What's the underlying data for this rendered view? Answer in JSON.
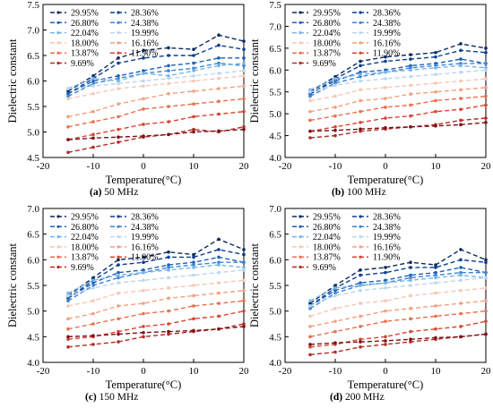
{
  "figure": {
    "captions": [
      {
        "letter": "(a)",
        "text": "50 MHz"
      },
      {
        "letter": "(b)",
        "text": "100 MHz"
      },
      {
        "letter": "(c)",
        "text": "150 MHz"
      },
      {
        "letter": "(d)",
        "text": "200 MHz"
      }
    ]
  },
  "colors": [
    "#0b2a5e",
    "#0d3f8f",
    "#1f5fb8",
    "#3b86d6",
    "#78b6ea",
    "#bcd6ec",
    "#f4c8b6",
    "#f2a080",
    "#e8704e",
    "#d8452f",
    "#b52a24",
    "#7a1118"
  ],
  "legend_order": [
    0,
    1,
    2,
    3,
    4,
    5,
    6,
    7,
    8,
    9,
    10,
    11
  ],
  "chart_data": [
    {
      "type": "line",
      "title": "",
      "xlabel": "Temperature(°C)",
      "ylabel": "Dielectric constant",
      "xlim": [
        -20,
        20
      ],
      "ylim": [
        4.5,
        7.5
      ],
      "xticks": [
        -20,
        -10,
        0,
        10,
        20
      ],
      "yticks": [
        4.5,
        5.0,
        5.5,
        6.0,
        6.5,
        7.0,
        7.5
      ],
      "x": [
        -15,
        -10,
        -5,
        0,
        5,
        10,
        15,
        20
      ],
      "series": [
        {
          "name": "29.95%",
          "values": [
            5.8,
            6.1,
            6.45,
            6.6,
            6.65,
            6.62,
            6.9,
            6.78
          ]
        },
        {
          "name": "28.36%",
          "values": [
            5.75,
            6.05,
            6.35,
            6.45,
            6.5,
            6.5,
            6.7,
            6.62
          ]
        },
        {
          "name": "26.80%",
          "values": [
            5.75,
            6.0,
            6.1,
            6.2,
            6.3,
            6.35,
            6.45,
            6.45
          ]
        },
        {
          "name": "24.38%",
          "values": [
            5.7,
            5.95,
            6.05,
            6.15,
            6.2,
            6.25,
            6.35,
            6.3
          ]
        },
        {
          "name": "22.04%",
          "values": [
            5.85,
            6.05,
            6.0,
            6.15,
            6.1,
            6.2,
            6.3,
            6.35
          ]
        },
        {
          "name": "19.99%",
          "values": [
            5.85,
            5.9,
            5.95,
            6.0,
            6.05,
            6.1,
            6.15,
            6.2
          ]
        },
        {
          "name": "18.00%",
          "values": [
            5.65,
            5.75,
            5.85,
            5.9,
            5.95,
            6.0,
            6.05,
            6.1
          ]
        },
        {
          "name": "16.16%",
          "values": [
            5.3,
            5.4,
            5.55,
            5.65,
            5.75,
            5.8,
            5.85,
            5.9
          ]
        },
        {
          "name": "13.87%",
          "values": [
            5.1,
            5.2,
            5.3,
            5.45,
            5.5,
            5.55,
            5.6,
            5.65
          ]
        },
        {
          "name": "11.90%",
          "values": [
            4.85,
            4.95,
            5.05,
            5.15,
            5.2,
            5.3,
            5.35,
            5.4
          ]
        },
        {
          "name": "9.69%",
          "values": [
            4.6,
            4.7,
            4.8,
            4.9,
            4.95,
            5.05,
            5.0,
            5.1
          ]
        },
        {
          "name": "",
          "values": [
            4.85,
            4.88,
            4.9,
            4.92,
            4.95,
            5.0,
            5.02,
            5.05
          ]
        }
      ]
    },
    {
      "type": "line",
      "title": "",
      "xlabel": "Temperature(°C)",
      "ylabel": "Dielectric constant",
      "xlim": [
        -20,
        20
      ],
      "ylim": [
        4.0,
        7.5
      ],
      "xticks": [
        -20,
        -10,
        0,
        10,
        20
      ],
      "yticks": [
        4.0,
        4.5,
        5.0,
        5.5,
        6.0,
        6.5,
        7.0,
        7.5
      ],
      "x": [
        -15,
        -10,
        -5,
        0,
        5,
        10,
        15,
        20
      ],
      "series": [
        {
          "name": "29.95%",
          "values": [
            5.5,
            5.85,
            6.2,
            6.3,
            6.35,
            6.4,
            6.6,
            6.5
          ]
        },
        {
          "name": "28.36%",
          "values": [
            5.45,
            5.8,
            6.1,
            6.2,
            6.25,
            6.3,
            6.45,
            6.4
          ]
        },
        {
          "name": "26.80%",
          "values": [
            5.45,
            5.75,
            5.95,
            6.0,
            6.1,
            6.15,
            6.25,
            6.15
          ]
        },
        {
          "name": "24.38%",
          "values": [
            5.4,
            5.7,
            5.85,
            5.95,
            6.05,
            6.1,
            6.15,
            6.15
          ]
        },
        {
          "name": "22.04%",
          "values": [
            5.55,
            5.8,
            5.9,
            5.95,
            6.0,
            6.05,
            6.1,
            6.05
          ]
        },
        {
          "name": "19.99%",
          "values": [
            5.5,
            5.65,
            5.75,
            5.8,
            5.85,
            5.9,
            5.95,
            6.0
          ]
        },
        {
          "name": "18.00%",
          "values": [
            5.3,
            5.4,
            5.55,
            5.6,
            5.65,
            5.7,
            5.75,
            5.8
          ]
        },
        {
          "name": "16.16%",
          "values": [
            5.05,
            5.15,
            5.3,
            5.35,
            5.45,
            5.5,
            5.55,
            5.6
          ]
        },
        {
          "name": "13.87%",
          "values": [
            4.85,
            4.95,
            5.05,
            5.15,
            5.2,
            5.3,
            5.35,
            5.4
          ]
        },
        {
          "name": "11.90%",
          "values": [
            4.6,
            4.7,
            4.8,
            4.9,
            4.95,
            5.05,
            5.1,
            5.2
          ]
        },
        {
          "name": "9.69%",
          "values": [
            4.45,
            4.5,
            4.6,
            4.65,
            4.7,
            4.75,
            4.85,
            4.9
          ]
        },
        {
          "name": "",
          "values": [
            4.6,
            4.62,
            4.65,
            4.68,
            4.7,
            4.72,
            4.75,
            4.8
          ]
        }
      ]
    },
    {
      "type": "line",
      "title": "",
      "xlabel": "Temperature(°C)",
      "ylabel": "Dielectric constant",
      "xlim": [
        -20,
        20
      ],
      "ylim": [
        4.0,
        7.0
      ],
      "xticks": [
        -20,
        -10,
        0,
        10,
        20
      ],
      "yticks": [
        4.0,
        4.5,
        5.0,
        5.5,
        6.0,
        6.5,
        7.0
      ],
      "x": [
        -15,
        -10,
        -5,
        0,
        5,
        10,
        15,
        20
      ],
      "series": [
        {
          "name": "29.95%",
          "values": [
            5.3,
            5.65,
            6.0,
            6.05,
            6.15,
            6.1,
            6.4,
            6.2
          ]
        },
        {
          "name": "28.36%",
          "values": [
            5.25,
            5.6,
            5.9,
            5.95,
            6.05,
            6.05,
            6.2,
            6.1
          ]
        },
        {
          "name": "26.80%",
          "values": [
            5.25,
            5.55,
            5.75,
            5.8,
            5.9,
            5.95,
            6.05,
            5.95
          ]
        },
        {
          "name": "24.38%",
          "values": [
            5.2,
            5.5,
            5.65,
            5.75,
            5.85,
            5.9,
            5.95,
            5.95
          ]
        },
        {
          "name": "22.04%",
          "values": [
            5.35,
            5.6,
            5.7,
            5.75,
            5.8,
            5.85,
            5.9,
            5.85
          ]
        },
        {
          "name": "19.99%",
          "values": [
            5.3,
            5.45,
            5.55,
            5.6,
            5.65,
            5.7,
            5.75,
            5.8
          ]
        },
        {
          "name": "18.00%",
          "values": [
            5.1,
            5.2,
            5.35,
            5.4,
            5.45,
            5.5,
            5.55,
            5.6
          ]
        },
        {
          "name": "16.16%",
          "values": [
            4.85,
            4.95,
            5.1,
            5.15,
            5.25,
            5.3,
            5.35,
            5.4
          ]
        },
        {
          "name": "13.87%",
          "values": [
            4.65,
            4.75,
            4.85,
            4.95,
            5.0,
            5.1,
            5.15,
            5.2
          ]
        },
        {
          "name": "11.90%",
          "values": [
            4.45,
            4.5,
            4.6,
            4.7,
            4.75,
            4.85,
            4.9,
            5.0
          ]
        },
        {
          "name": "9.69%",
          "values": [
            4.3,
            4.35,
            4.4,
            4.5,
            4.55,
            4.6,
            4.65,
            4.75
          ]
        },
        {
          "name": "",
          "values": [
            4.5,
            4.52,
            4.55,
            4.58,
            4.6,
            4.62,
            4.65,
            4.7
          ]
        }
      ]
    },
    {
      "type": "line",
      "title": "",
      "xlabel": "Temperature(°C)",
      "ylabel": "Dielectric constant",
      "xlim": [
        -20,
        20
      ],
      "ylim": [
        4.0,
        7.0
      ],
      "xticks": [
        -20,
        -10,
        0,
        10,
        20
      ],
      "yticks": [
        4.0,
        4.5,
        5.0,
        5.5,
        6.0,
        6.5,
        7.0
      ],
      "x": [
        -15,
        -10,
        -5,
        0,
        5,
        10,
        15,
        20
      ],
      "series": [
        {
          "name": "29.95%",
          "values": [
            5.15,
            5.5,
            5.8,
            5.85,
            5.95,
            5.9,
            6.2,
            6.0
          ]
        },
        {
          "name": "28.36%",
          "values": [
            5.1,
            5.45,
            5.7,
            5.75,
            5.85,
            5.85,
            6.0,
            5.95
          ]
        },
        {
          "name": "26.80%",
          "values": [
            5.1,
            5.4,
            5.55,
            5.6,
            5.7,
            5.75,
            5.85,
            5.75
          ]
        },
        {
          "name": "24.38%",
          "values": [
            5.05,
            5.35,
            5.5,
            5.55,
            5.65,
            5.7,
            5.75,
            5.75
          ]
        },
        {
          "name": "22.04%",
          "values": [
            5.2,
            5.45,
            5.5,
            5.55,
            5.6,
            5.65,
            5.7,
            5.65
          ]
        },
        {
          "name": "19.99%",
          "values": [
            5.1,
            5.3,
            5.4,
            5.45,
            5.5,
            5.55,
            5.6,
            5.65
          ]
        },
        {
          "name": "18.00%",
          "values": [
            4.9,
            5.05,
            5.15,
            5.2,
            5.3,
            5.35,
            5.4,
            5.45
          ]
        },
        {
          "name": "16.16%",
          "values": [
            4.7,
            4.8,
            4.9,
            5.0,
            5.05,
            5.1,
            5.15,
            5.2
          ]
        },
        {
          "name": "13.87%",
          "values": [
            4.5,
            4.6,
            4.7,
            4.8,
            4.85,
            4.9,
            4.95,
            5.0
          ]
        },
        {
          "name": "11.90%",
          "values": [
            4.3,
            4.35,
            4.45,
            4.5,
            4.6,
            4.65,
            4.7,
            4.8
          ]
        },
        {
          "name": "9.69%",
          "values": [
            4.15,
            4.2,
            4.3,
            4.35,
            4.4,
            4.45,
            4.5,
            4.55
          ]
        },
        {
          "name": "",
          "values": [
            4.35,
            4.38,
            4.4,
            4.42,
            4.45,
            4.48,
            4.5,
            4.55
          ]
        }
      ]
    }
  ]
}
